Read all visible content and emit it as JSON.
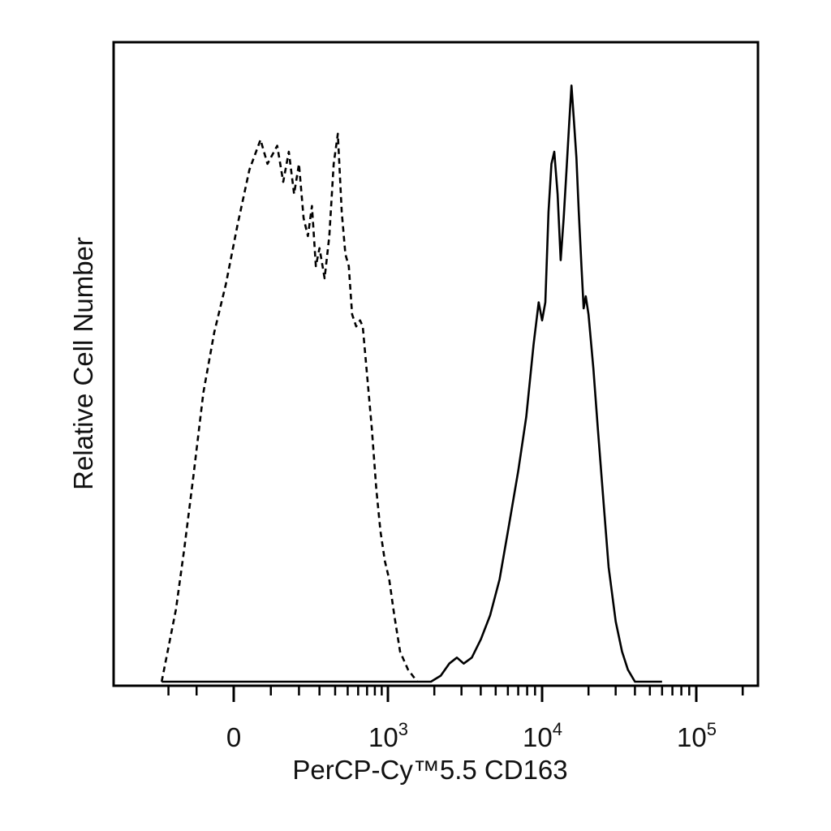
{
  "chart_data": {
    "type": "area",
    "title": "",
    "xlabel": "PerCP-Cy™5.5 CD163",
    "ylabel": "Relative Cell Number",
    "x_scale": "biexponential",
    "xlim": [
      -300,
      250000
    ],
    "ylim": [
      0,
      100
    ],
    "x_ticks": [
      {
        "value": 0,
        "label": "0"
      },
      {
        "value": 1000,
        "base": "10",
        "exp": "3"
      },
      {
        "value": 10000,
        "base": "10",
        "exp": "4"
      },
      {
        "value": 100000,
        "base": "10",
        "exp": "5"
      }
    ],
    "grid": false,
    "legend": "none",
    "series": [
      {
        "line_style": "dashed",
        "points": [
          [
            -230,
            0
          ],
          [
            -170,
            12
          ],
          [
            -140,
            22
          ],
          [
            -110,
            34
          ],
          [
            -80,
            48
          ],
          [
            -50,
            58
          ],
          [
            -20,
            66
          ],
          [
            10,
            76
          ],
          [
            40,
            85
          ],
          [
            70,
            90
          ],
          [
            90,
            86
          ],
          [
            120,
            89
          ],
          [
            140,
            83
          ],
          [
            160,
            88
          ],
          [
            180,
            81
          ],
          [
            200,
            86
          ],
          [
            220,
            77
          ],
          [
            240,
            74
          ],
          [
            260,
            79
          ],
          [
            280,
            69
          ],
          [
            300,
            72
          ],
          [
            330,
            67
          ],
          [
            360,
            74
          ],
          [
            390,
            86
          ],
          [
            420,
            91
          ],
          [
            450,
            78
          ],
          [
            480,
            71
          ],
          [
            510,
            69
          ],
          [
            540,
            61
          ],
          [
            580,
            59
          ],
          [
            620,
            60
          ],
          [
            650,
            59
          ],
          [
            700,
            51
          ],
          [
            760,
            42
          ],
          [
            820,
            32
          ],
          [
            880,
            25
          ],
          [
            950,
            20
          ],
          [
            1020,
            17
          ],
          [
            1100,
            11
          ],
          [
            1200,
            5
          ],
          [
            1350,
            2
          ],
          [
            1550,
            0
          ]
        ]
      },
      {
        "line_style": "solid",
        "points": [
          [
            -230,
            0
          ],
          [
            1600,
            0
          ],
          [
            1900,
            0
          ],
          [
            2200,
            1
          ],
          [
            2500,
            3
          ],
          [
            2800,
            4
          ],
          [
            3100,
            3
          ],
          [
            3500,
            4
          ],
          [
            4000,
            7
          ],
          [
            4600,
            11
          ],
          [
            5300,
            17
          ],
          [
            6100,
            26
          ],
          [
            7000,
            35
          ],
          [
            7900,
            44
          ],
          [
            8800,
            56
          ],
          [
            9500,
            63
          ],
          [
            10000,
            60
          ],
          [
            10500,
            63
          ],
          [
            11000,
            78
          ],
          [
            11500,
            86
          ],
          [
            12000,
            88
          ],
          [
            12600,
            81
          ],
          [
            13200,
            70
          ],
          [
            13800,
            77
          ],
          [
            14400,
            85
          ],
          [
            15000,
            93
          ],
          [
            15500,
            99
          ],
          [
            16100,
            93
          ],
          [
            16700,
            87
          ],
          [
            17300,
            78
          ],
          [
            18000,
            69
          ],
          [
            18600,
            62
          ],
          [
            19200,
            64
          ],
          [
            20000,
            61
          ],
          [
            21500,
            52
          ],
          [
            23000,
            42
          ],
          [
            25000,
            30
          ],
          [
            27000,
            19
          ],
          [
            30000,
            10
          ],
          [
            33000,
            5
          ],
          [
            36000,
            2
          ],
          [
            40000,
            0
          ],
          [
            60000,
            0
          ]
        ]
      }
    ]
  }
}
